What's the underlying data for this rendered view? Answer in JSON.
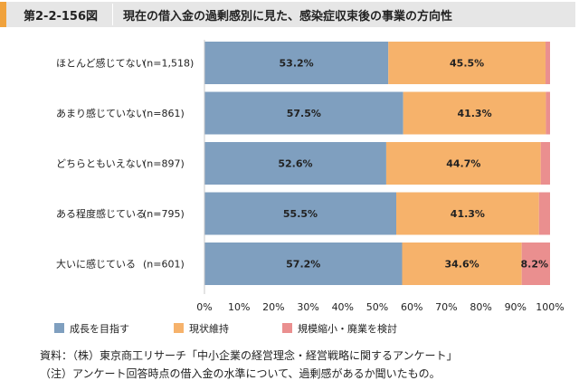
{
  "figure": {
    "number": "第2-2-156図",
    "title": "現在の借入金の過剰感別に見た、感染症収束後の事業の方向性"
  },
  "colors": {
    "growth": "#7f9fbf",
    "maintain": "#f6b26b",
    "shrink": "#ea8f8f",
    "accent": "#f0a23c"
  },
  "legend": [
    {
      "label": "成長を目指す",
      "color": "#7f9fbf"
    },
    {
      "label": "現状維持",
      "color": "#f6b26b"
    },
    {
      "label": "規模縮小・廃業を検討",
      "color": "#ea8f8f"
    }
  ],
  "notes": {
    "source": "資料：（株）東京商工リサーチ「中小企業の経営理念・経営戦略に関するアンケート」",
    "note": "（注）アンケート回答時点の借入金の水準について、過剰感があるか聞いたもの。"
  },
  "chart_data": {
    "type": "bar",
    "orientation": "horizontal",
    "stacked": true,
    "categories": [
      "ほとんど感じてない",
      "あまり感じていない",
      "どちらともいえない",
      "ある程度感じている",
      "大いに感じている"
    ],
    "sample_sizes": [
      "(n=1,518)",
      "(n=861)",
      "(n=897)",
      "(n=795)",
      "(n=601)"
    ],
    "series": [
      {
        "name": "成長を目指す",
        "values": [
          53.2,
          57.5,
          52.6,
          55.5,
          57.2
        ],
        "labels": [
          "53.2%",
          "57.5%",
          "52.6%",
          "55.5%",
          "57.2%"
        ]
      },
      {
        "name": "現状維持",
        "values": [
          45.5,
          41.3,
          44.7,
          41.3,
          34.6
        ],
        "labels": [
          "45.5%",
          "41.3%",
          "44.7%",
          "41.3%",
          "34.6%"
        ]
      },
      {
        "name": "規模縮小・廃業を検討",
        "values": [
          1.3,
          1.2,
          2.7,
          3.2,
          8.2
        ],
        "labels": [
          "",
          "",
          "",
          "",
          "8.2%"
        ]
      }
    ],
    "xlim": [
      0,
      100
    ],
    "xticks": [
      "0%",
      "10%",
      "20%",
      "30%",
      "40%",
      "50%",
      "60%",
      "70%",
      "80%",
      "90%",
      "100%"
    ],
    "grid": false,
    "legend_position": "bottom"
  }
}
